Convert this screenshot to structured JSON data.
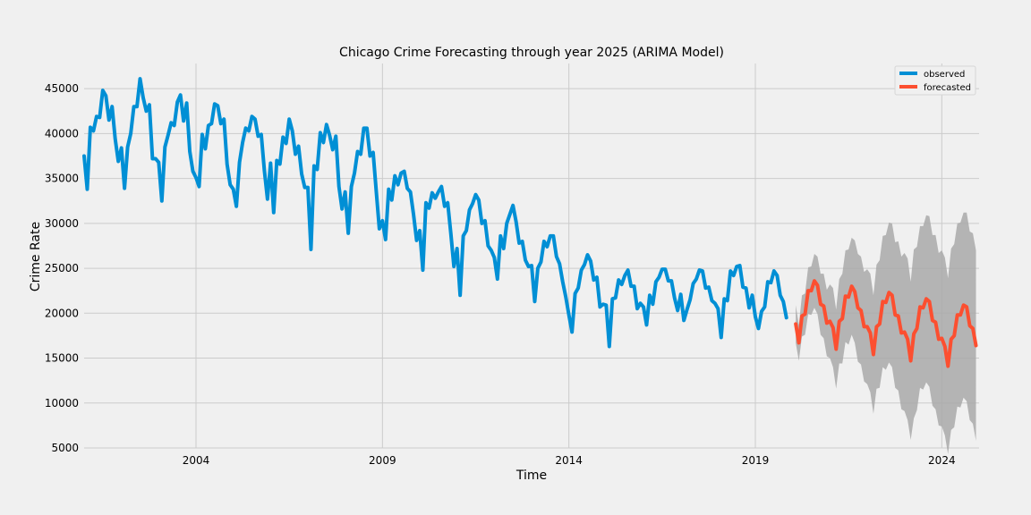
{
  "chart_data": {
    "type": "line",
    "title": "Chicago Crime Forecasting through year 2025 (ARIMA Model)",
    "xlabel": "Time",
    "ylabel": "Crime Rate",
    "xlim": [
      2001.0,
      2025.0
    ],
    "ylim": [
      5000,
      47800
    ],
    "x_ticks": [
      2004,
      2009,
      2014,
      2019,
      2024
    ],
    "y_ticks": [
      5000,
      10000,
      15000,
      20000,
      25000,
      30000,
      35000,
      40000,
      45000
    ],
    "grid": true,
    "legend_position": "top-right",
    "observed_start": 2001.0,
    "forecast_start": 2020.083,
    "frequency": "monthly",
    "series": [
      {
        "name": "observed",
        "color": "#008fd5",
        "values": [
          37500,
          33800,
          40700,
          40300,
          41900,
          41800,
          44800,
          44200,
          41500,
          43000,
          39400,
          36900,
          38400,
          33900,
          38500,
          40000,
          43000,
          43000,
          46100,
          44000,
          42500,
          43200,
          37200,
          37200,
          36800,
          32500,
          38500,
          39800,
          41200,
          40900,
          43500,
          44300,
          41400,
          43400,
          38000,
          35800,
          35100,
          34100,
          39900,
          38300,
          40900,
          41100,
          43300,
          43100,
          41100,
          41600,
          36600,
          34300,
          33800,
          31900,
          36800,
          39000,
          40600,
          40300,
          41900,
          41600,
          39700,
          39900,
          35900,
          32700,
          36700,
          31200,
          37000,
          36600,
          39600,
          38900,
          41600,
          40300,
          37700,
          38600,
          35500,
          34000,
          34000,
          27100,
          36400,
          36000,
          40100,
          39000,
          41000,
          39800,
          38200,
          39700,
          34100,
          31600,
          33500,
          28900,
          34100,
          35600,
          38000,
          37700,
          40600,
          40600,
          37500,
          37900,
          33600,
          29400,
          30300,
          28200,
          33800,
          32600,
          35300,
          34300,
          35600,
          35800,
          33900,
          33500,
          31000,
          28100,
          29200,
          24800,
          32300,
          31700,
          33400,
          32800,
          33500,
          34100,
          31900,
          32300,
          28900,
          25200,
          27200,
          22000,
          28600,
          29200,
          31500,
          32200,
          33200,
          32600,
          30000,
          30300,
          27500,
          27000,
          26200,
          23800,
          28600,
          27200,
          30000,
          31000,
          32000,
          30200,
          27800,
          28000,
          25900,
          25200,
          25300,
          21300,
          25000,
          25700,
          28000,
          27400,
          28600,
          28600,
          26300,
          25500,
          23500,
          21800,
          19800,
          17900,
          22200,
          22800,
          24800,
          25400,
          26500,
          25800,
          23700,
          24000,
          20700,
          21000,
          20900,
          16300,
          21600,
          21700,
          23700,
          23200,
          24200,
          24800,
          23000,
          23000,
          20500,
          21100,
          20700,
          18700,
          22000,
          21000,
          23500,
          24000,
          24900,
          24900,
          23600,
          23600,
          21700,
          20300,
          22100,
          19200,
          20400,
          21500,
          23300,
          23800,
          24800,
          24700,
          22800,
          22900,
          21400,
          21100,
          20500,
          17300,
          21600,
          21400,
          24700,
          24200,
          25200,
          25300,
          22900,
          22800,
          20600,
          22000,
          19600,
          18300,
          20200,
          20700,
          23500,
          23400,
          24700,
          24200,
          22000,
          21300,
          19500
        ]
      },
      {
        "name": "forecasted",
        "color": "#fc4f30",
        "values": [
          18800,
          16700,
          19700,
          19900,
          22500,
          22500,
          23600,
          23100,
          21000,
          20800,
          18900,
          19100,
          18400,
          16000,
          19100,
          19400,
          21900,
          21800,
          23000,
          22400,
          20600,
          20300,
          18500,
          18500,
          17800,
          15400,
          18500,
          18800,
          21300,
          21200,
          22300,
          22000,
          19800,
          19700,
          17800,
          17900,
          17100,
          14700,
          17700,
          18300,
          20700,
          20600,
          21600,
          21300,
          19200,
          19000,
          17100,
          17200,
          16300,
          14100,
          17100,
          17500,
          19800,
          19800,
          20900,
          20700,
          18600,
          18300,
          16400
        ]
      }
    ],
    "confidence_interval": {
      "color": "#a9a9a9",
      "lower": [
        16700,
        14700,
        17400,
        17600,
        19900,
        19800,
        20600,
        19900,
        17600,
        17200,
        15200,
        15000,
        14000,
        11600,
        14400,
        14400,
        16800,
        16500,
        17600,
        16700,
        14600,
        14300,
        12400,
        12100,
        11200,
        8800,
        11600,
        11700,
        14000,
        13700,
        14500,
        14000,
        11700,
        11400,
        9300,
        9100,
        8100,
        5900,
        8300,
        9200,
        11700,
        11500,
        12300,
        11800,
        9700,
        9300,
        7500,
        7400,
        6400,
        4300,
        7000,
        7300,
        9600,
        9500,
        10600,
        10200,
        8100,
        7700,
        5800
      ],
      "upper": [
        20900,
        18700,
        22000,
        22200,
        25100,
        25200,
        26600,
        26300,
        24400,
        24400,
        22600,
        23200,
        22800,
        20400,
        23800,
        24400,
        27000,
        27100,
        28400,
        28100,
        26600,
        26300,
        24600,
        24900,
        24400,
        22000,
        25400,
        25900,
        28600,
        28700,
        30100,
        30000,
        27900,
        28000,
        26300,
        26700,
        26100,
        23500,
        27100,
        27400,
        29700,
        29700,
        30900,
        30800,
        28700,
        28700,
        26700,
        27000,
        26200,
        23900,
        27200,
        27700,
        30000,
        30100,
        31200,
        31200,
        29100,
        28900,
        27000
      ]
    }
  }
}
